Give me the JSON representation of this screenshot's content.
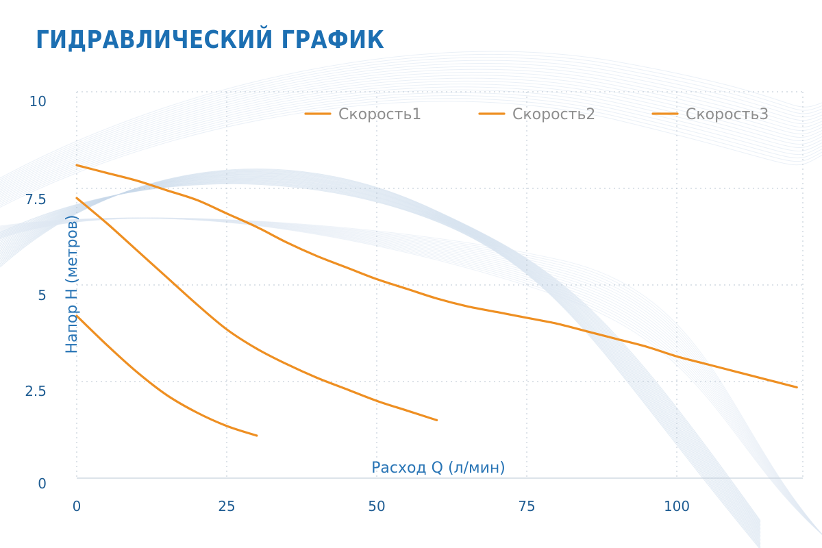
{
  "chart_data": {
    "type": "line",
    "title": "ГИДРАВЛИЧЕСКИЙ ГРАФИК",
    "xlabel": "Расход Q (л/мин)",
    "ylabel": "Напор H (метров)",
    "xlim": [
      0,
      121
    ],
    "ylim": [
      0,
      10
    ],
    "xticks": [
      "0",
      "25",
      "50",
      "75",
      "100"
    ],
    "xtick_values": [
      0,
      25,
      50,
      75,
      100
    ],
    "yticks": [
      "0",
      "2.5",
      "5",
      "7.5",
      "10"
    ],
    "ytick_values": [
      0,
      2.5,
      5,
      7.5,
      10
    ],
    "grid": "dotted",
    "legend_position": "top-right",
    "line_color": "#ee8f22",
    "series": [
      {
        "name": "Скорость1",
        "x": [
          0,
          5,
          10,
          15,
          20,
          25,
          30,
          35,
          40,
          45,
          50,
          55,
          60,
          65,
          70,
          75,
          80,
          85,
          90,
          95,
          100,
          105,
          110,
          115,
          120
        ],
        "y": [
          8.1,
          7.9,
          7.7,
          7.45,
          7.2,
          6.85,
          6.5,
          6.1,
          5.75,
          5.45,
          5.15,
          4.9,
          4.65,
          4.45,
          4.3,
          4.15,
          4.0,
          3.8,
          3.6,
          3.4,
          3.15,
          2.95,
          2.75,
          2.55,
          2.35
        ]
      },
      {
        "name": "Скорость2",
        "x": [
          0,
          5,
          10,
          15,
          20,
          25,
          30,
          35,
          40,
          45,
          50,
          55,
          60
        ],
        "y": [
          7.25,
          6.6,
          5.9,
          5.2,
          4.5,
          3.85,
          3.35,
          2.95,
          2.6,
          2.3,
          2.0,
          1.75,
          1.5
        ]
      },
      {
        "name": "Скорость3",
        "x": [
          0,
          5,
          10,
          15,
          20,
          25,
          30
        ],
        "y": [
          4.2,
          3.45,
          2.75,
          2.15,
          1.7,
          1.35,
          1.1
        ]
      }
    ]
  }
}
